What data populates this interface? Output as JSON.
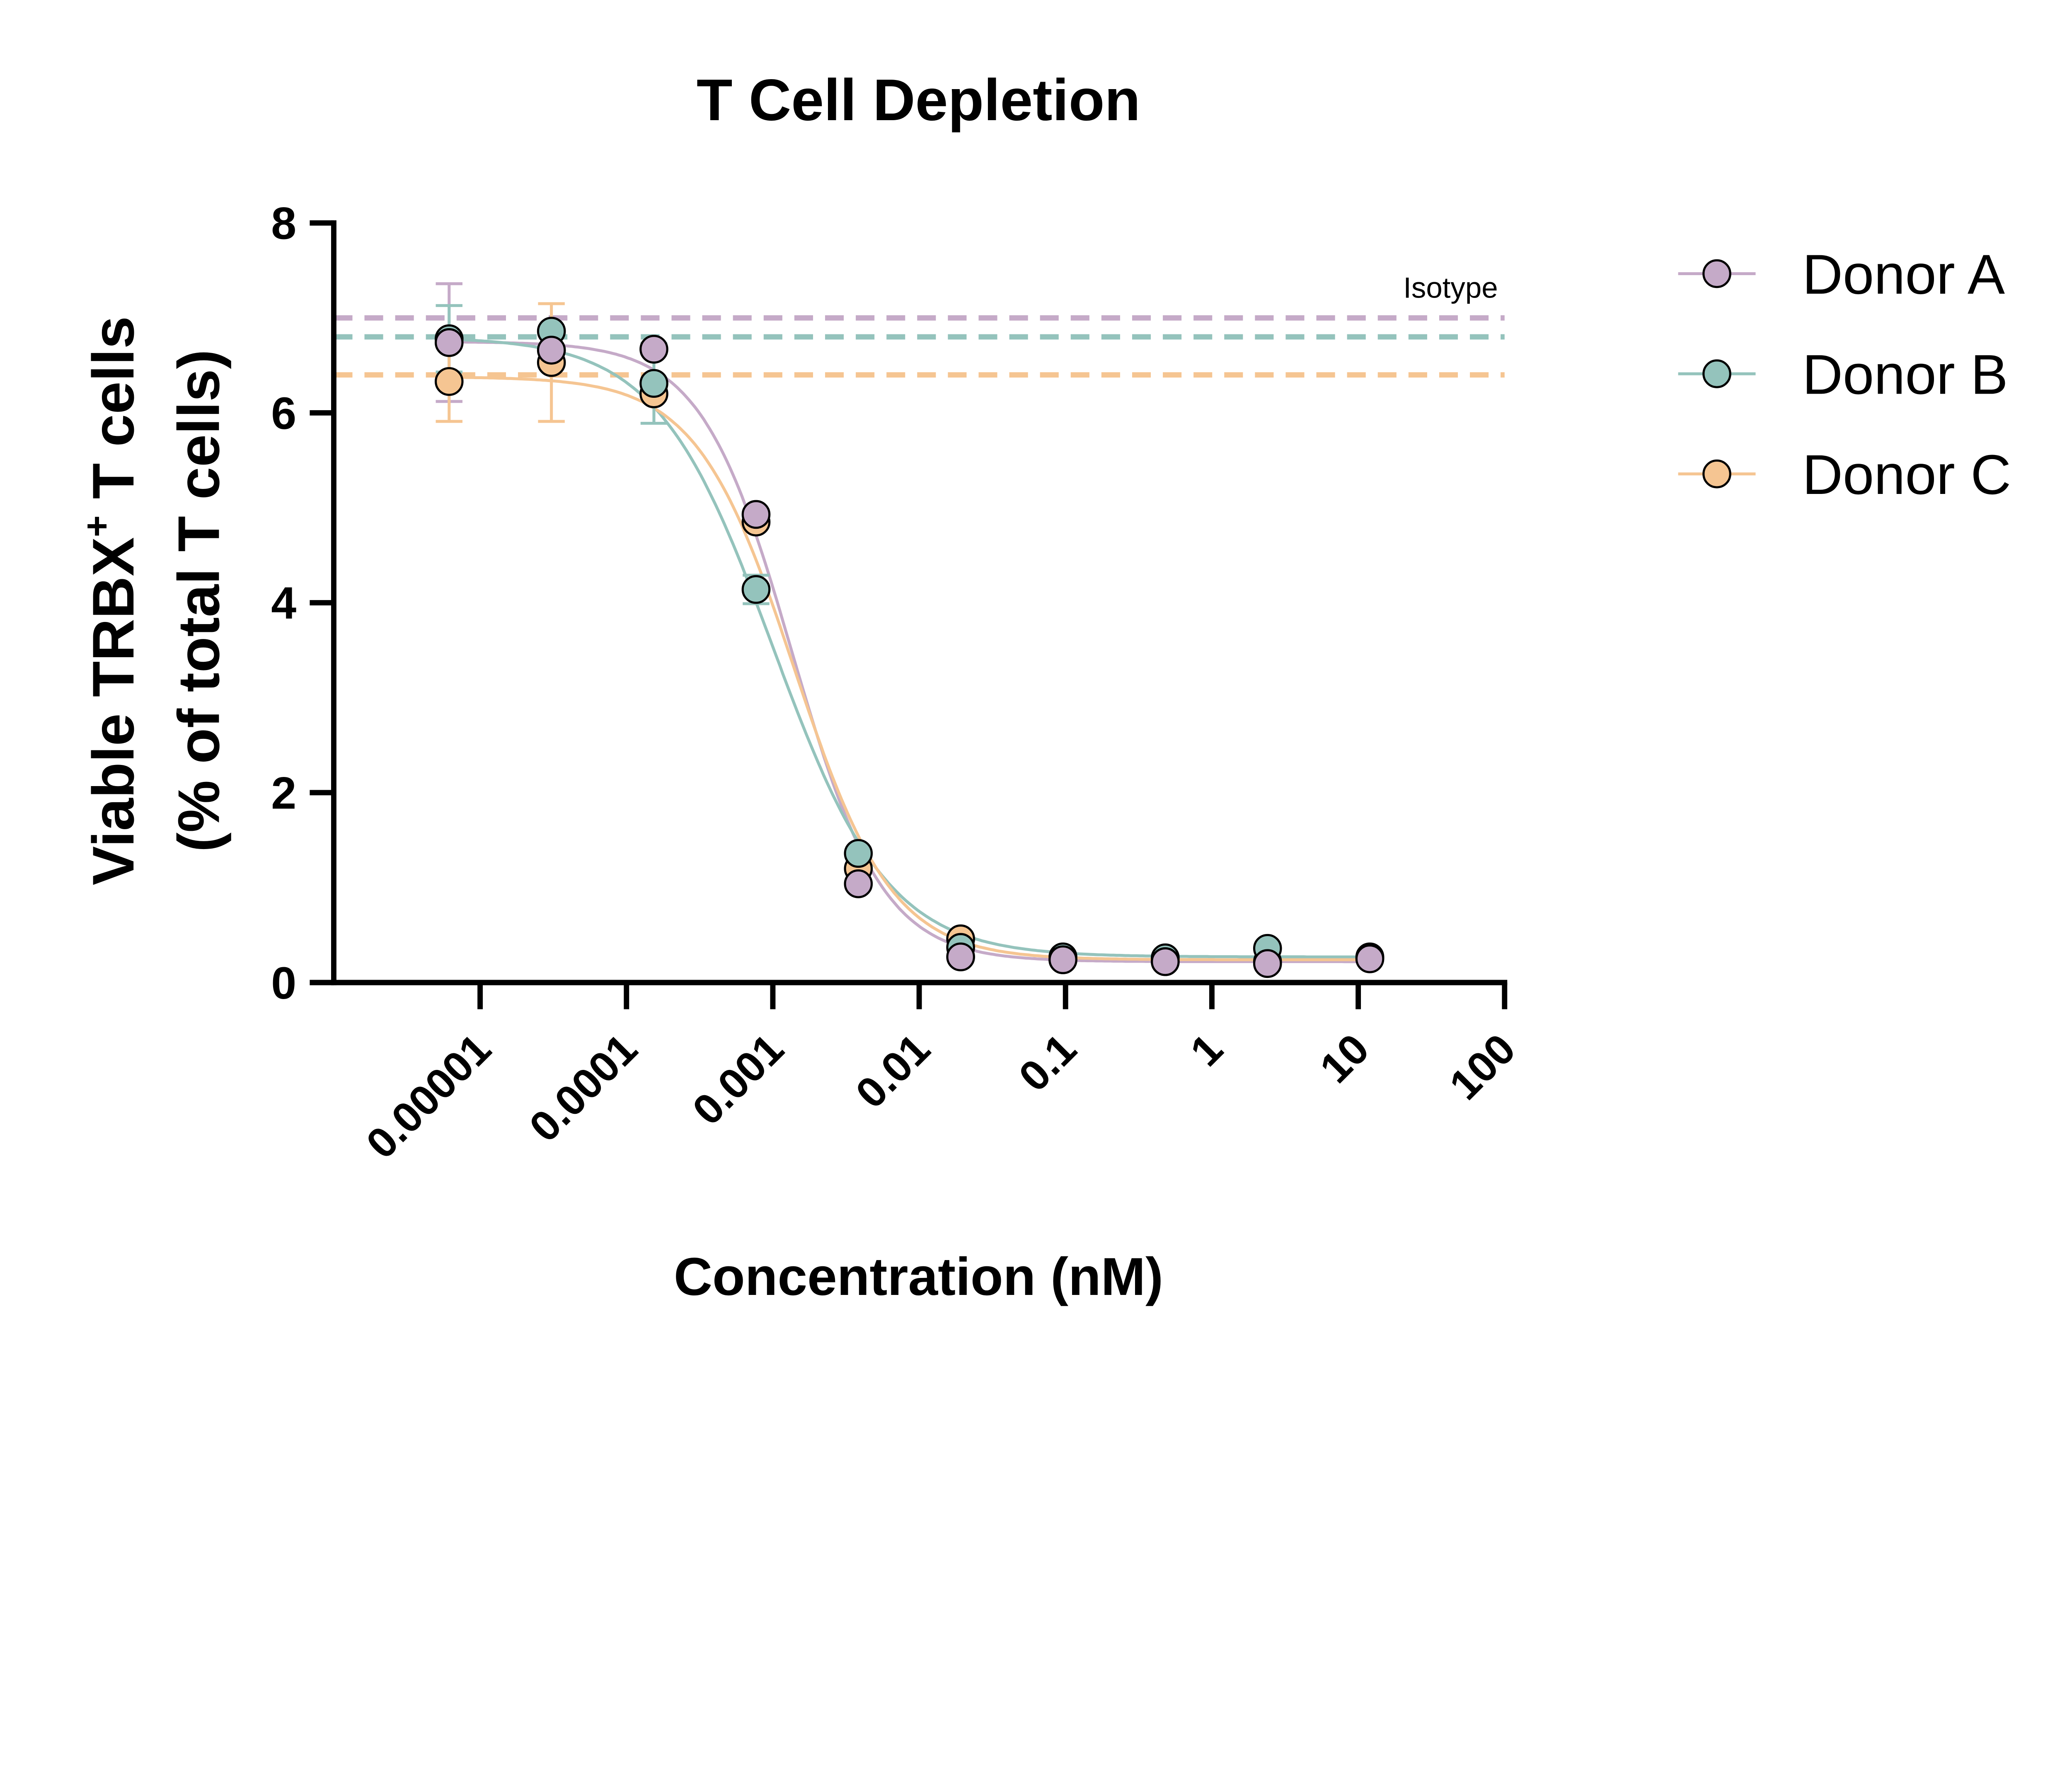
{
  "chart_data": {
    "type": "scatter",
    "title": "T Cell  Depletion",
    "xlabel": "Concentration (nM)",
    "ylabel_line1": "Viable TRBX",
    "ylabel_sup": "+",
    "ylabel_line1_end": " T cells",
    "ylabel_line2": "(% of total T cells)",
    "x_scale": "log",
    "xlim": [
      1e-06,
      100
    ],
    "ylim": [
      0,
      8
    ],
    "x_ticks": [
      1e-05,
      0.0001,
      0.001,
      0.01,
      0.1,
      1,
      10,
      100
    ],
    "x_tick_labels": [
      "0.00001",
      "0.0001",
      "0.001",
      "0.01",
      "0.1",
      "1",
      "10",
      "100"
    ],
    "y_ticks": [
      0,
      2,
      4,
      6,
      8
    ],
    "y_tick_labels": [
      "0",
      "2",
      "4",
      "6",
      "8"
    ],
    "grid": false,
    "legend_position": "right",
    "reference_label": "Isotype",
    "x": [
      6.14e-06,
      3.07e-05,
      0.000154,
      0.000768,
      0.00384,
      0.0192,
      0.096,
      0.48,
      2.4,
      12
    ],
    "series": [
      {
        "name": "Donor A",
        "color": "#c5aac8",
        "values": [
          6.74,
          6.66,
          6.67,
          4.93,
          1.04,
          0.27,
          0.24,
          0.22,
          0.2,
          0.25
        ],
        "errors": [
          0.62,
          0,
          0,
          0,
          0,
          0,
          0,
          0,
          0,
          0
        ],
        "isotype": 7.0
      },
      {
        "name": "Donor B",
        "color": "#94c3bc",
        "values": [
          6.78,
          6.86,
          6.31,
          4.14,
          1.36,
          0.37,
          0.27,
          0.26,
          0.36,
          0.27
        ],
        "errors": [
          0.35,
          0,
          0.42,
          0.15,
          0,
          0,
          0,
          0,
          0,
          0
        ],
        "isotype": 6.8
      },
      {
        "name": "Donor C",
        "color": "#f5c592",
        "values": [
          6.33,
          6.53,
          6.2,
          4.85,
          1.2,
          0.46,
          0.24,
          0.22,
          0.22,
          0.26
        ],
        "errors": [
          0.42,
          0.62,
          0,
          0,
          0,
          0,
          0,
          0,
          0,
          0
        ],
        "isotype": 6.4
      }
    ]
  }
}
